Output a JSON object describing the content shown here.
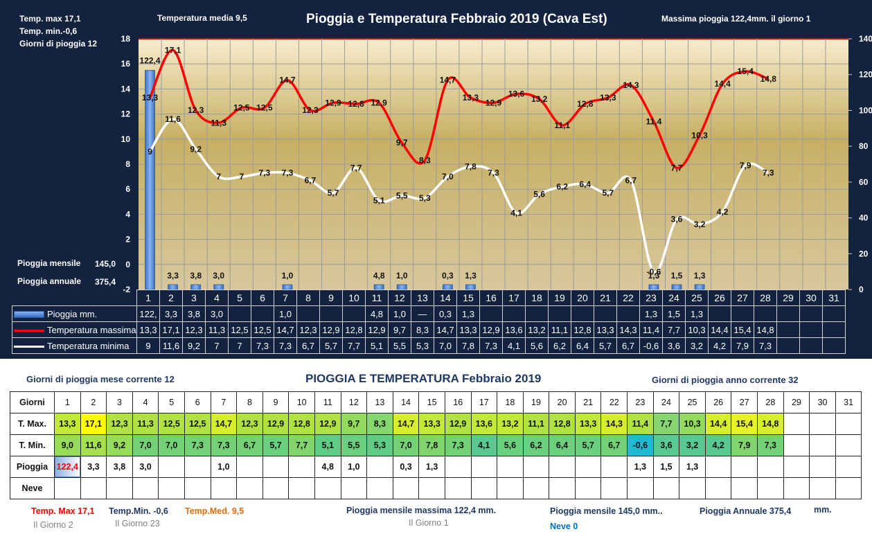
{
  "header": {
    "title": "Pioggia e Temperatura Febbraio 2019 (Cava Est)",
    "temp_max": "Temp. max  17,1",
    "temp_min": "Temp.  min.-0,6",
    "giorni_pioggia": "Giorni  di pioggia   12",
    "temp_media": "Temperatura media  9,5",
    "massima_pioggia": "Massima pioggia  122,4mm.  il giorno  1",
    "pioggia_mensile_label": "Pioggia mensile",
    "pioggia_mensile_value": "145,0",
    "pioggia_annuale_label": "Pioggia annuale",
    "pioggia_annuale_value": "375,4"
  },
  "chart_data": {
    "type": "bar+line",
    "title": "Pioggia e Temperatura Febbraio 2019 (Cava Est)",
    "categories": [
      "1",
      "2",
      "3",
      "4",
      "5",
      "6",
      "7",
      "8",
      "9",
      "10",
      "11",
      "12",
      "13",
      "14",
      "15",
      "16",
      "17",
      "18",
      "19",
      "20",
      "21",
      "22",
      "23",
      "24",
      "25",
      "26",
      "27",
      "28",
      "29",
      "30",
      "31"
    ],
    "left_axis": {
      "ylim": [
        -2,
        18
      ],
      "ticks": [
        "18",
        "16",
        "14",
        "12",
        "10",
        "8",
        "6",
        "4",
        "2",
        "0",
        "-2"
      ]
    },
    "right_axis": {
      "ylim": [
        0,
        140
      ],
      "ticks": [
        "140",
        "120",
        "100",
        "80",
        "60",
        "40",
        "20",
        "0"
      ]
    },
    "grid": true,
    "series": [
      {
        "name": "Pioggia mm.",
        "type": "bar",
        "axis": "right",
        "color": "#4f86d4",
        "values": [
          122.4,
          3.3,
          3.8,
          3.0,
          null,
          null,
          1.0,
          null,
          null,
          null,
          4.8,
          1.0,
          null,
          0.3,
          1.3,
          null,
          null,
          null,
          null,
          null,
          null,
          null,
          1.3,
          1.5,
          1.3,
          null,
          null,
          null,
          null,
          null,
          null
        ],
        "labels": [
          "122,4",
          "3,3",
          "3,8",
          "3,0",
          "",
          "",
          "1,0",
          "",
          "",
          "",
          "4,8",
          "1,0",
          "",
          "0,3",
          "1,3",
          "",
          "",
          "",
          "",
          "",
          "",
          "",
          "1,3",
          "1,5",
          "1,3",
          "",
          "",
          "",
          "",
          "",
          ""
        ],
        "table_labels": [
          "122,",
          "3,3",
          "3,8",
          "3,0",
          "",
          "",
          "1,0",
          "",
          "",
          "",
          "4,8",
          "1,0",
          "",
          "0,3",
          "1,3",
          "",
          "",
          "",
          "",
          "",
          "",
          "",
          "1,3",
          "1,5",
          "1,3",
          "",
          "",
          "",
          "",
          "",
          ""
        ]
      },
      {
        "name": "Temperatura massima",
        "type": "line",
        "axis": "left",
        "color": "#ff0000",
        "values": [
          13.3,
          17.1,
          12.3,
          11.3,
          12.5,
          12.5,
          14.7,
          12.3,
          12.9,
          12.8,
          12.9,
          9.7,
          8.3,
          14.7,
          13.3,
          12.9,
          13.6,
          13.2,
          11.1,
          12.8,
          13.3,
          14.3,
          11.4,
          7.7,
          10.3,
          14.4,
          15.4,
          14.8,
          null,
          null,
          null
        ],
        "labels": [
          "13,3",
          "17,1",
          "12,3",
          "11,3",
          "12,5",
          "12,5",
          "14,7",
          "12,3",
          "12,9",
          "12,8",
          "12,9",
          "9,7",
          "8,3",
          "14,7",
          "13,3",
          "12,9",
          "13,6",
          "13,2",
          "11,1",
          "12,8",
          "13,3",
          "14,3",
          "11,4",
          "7,7",
          "10,3",
          "14,4",
          "15,4",
          "14,8",
          "",
          "",
          ""
        ]
      },
      {
        "name": "Temperatura minima",
        "type": "line",
        "axis": "left",
        "color": "#ffffff",
        "values": [
          9,
          11.6,
          9.2,
          7,
          7,
          7.3,
          7.3,
          6.7,
          5.7,
          7.7,
          5.1,
          5.5,
          5.3,
          7.0,
          7.8,
          7.3,
          4.1,
          5.6,
          6.2,
          6.4,
          5.7,
          6.7,
          -0.6,
          3.6,
          3.2,
          4.2,
          7.9,
          7.3,
          null,
          null,
          null
        ],
        "labels": [
          "9",
          "11,6",
          "9,2",
          "7",
          "7",
          "7,3",
          "7,3",
          "6,7",
          "5,7",
          "7,7",
          "5,1",
          "5,5",
          "5,3",
          "7,0",
          "7,8",
          "7,3",
          "4,1",
          "5,6",
          "6,2",
          "6,4",
          "5,7",
          "6,7",
          "-0,6",
          "3,6",
          "3,2",
          "4,2",
          "7,9",
          "7,3",
          "",
          "",
          ""
        ]
      }
    ],
    "legend_placement": "bottom-table"
  },
  "chart_table": {
    "row_labels": [
      "Pioggia mm.",
      "Temperatura massima",
      "Temperatura minima"
    ],
    "mark_13": "—"
  },
  "bottom": {
    "title": "PIOGGIA E TEMPERATURA Febbraio 2019",
    "giorni_mese": "Giorni di pioggia mese corrente   12",
    "giorni_anno": "Giorni di pioggia anno corrente  32",
    "row_labels": [
      "Giorni",
      "T. Max.",
      "T. Min.",
      "Pioggia",
      "Neve"
    ],
    "days": [
      "1",
      "2",
      "3",
      "4",
      "5",
      "6",
      "7",
      "8",
      "9",
      "10",
      "11",
      "12",
      "13",
      "14",
      "15",
      "16",
      "17",
      "18",
      "19",
      "20",
      "21",
      "22",
      "23",
      "24",
      "25",
      "26",
      "27",
      "28",
      "29",
      "30",
      "31"
    ],
    "tmax": [
      "13,3",
      "17,1",
      "12,3",
      "11,3",
      "12,5",
      "12,5",
      "14,7",
      "12,3",
      "12,9",
      "12,8",
      "12,9",
      "9,7",
      "8,3",
      "14,7",
      "13,3",
      "12,9",
      "13,6",
      "13,2",
      "11,1",
      "12,8",
      "13,3",
      "14,3",
      "11,4",
      "7,7",
      "10,3",
      "14,4",
      "15,4",
      "14,8",
      "",
      "",
      ""
    ],
    "tmin": [
      "9,0",
      "11,6",
      "9,2",
      "7,0",
      "7,0",
      "7,3",
      "7,3",
      "6,7",
      "5,7",
      "7,7",
      "5,1",
      "5,5",
      "5,3",
      "7,0",
      "7,8",
      "7,3",
      "4,1",
      "5,6",
      "6,2",
      "6,4",
      "5,7",
      "6,7",
      "-0,6",
      "3,6",
      "3,2",
      "4,2",
      "7,9",
      "7,3",
      "",
      "",
      ""
    ],
    "pioggia": [
      "122,4",
      "3,3",
      "3,8",
      "3,0",
      "",
      "",
      "1,0",
      "",
      "",
      "",
      "4,8",
      "1,0",
      "",
      "0,3",
      "1,3",
      "",
      "",
      "",
      "",
      "",
      "",
      "",
      "1,3",
      "1,5",
      "1,3",
      "",
      "",
      "",
      "",
      "",
      ""
    ],
    "neve": [
      "",
      "",
      "",
      "",
      "",
      "",
      "",
      "",
      "",
      "",
      "",
      "",
      "",
      "",
      "",
      "",
      "",
      "",
      "",
      "",
      "",
      "",
      "",
      "",
      "",
      "",
      "",
      "",
      "",
      "",
      ""
    ],
    "footer": {
      "tmax": "Temp. Max 17,1",
      "tmax_day": "Il Giorno   2",
      "tmin": "Temp.Min.  -0,6",
      "tmin_day": "Il Giorno 23",
      "tmed": "Temp.Med. 9,5",
      "pmax": "Pioggia mensile massima 122,4 mm.",
      "pmax_day": "Il Giorno 1",
      "pmensile": "Pioggia mensile 145,0 mm..",
      "neve": "Neve 0",
      "pannuale": "Pioggia Annuale 375,4",
      "pannuale_unit": "mm."
    },
    "colors": {
      "rain_max": "#ff0000",
      "tmin_text": "#1f3864",
      "tmed_text": "#e36c09",
      "neve_text": "#0070c0",
      "day_text": "#7f7f7f"
    }
  }
}
